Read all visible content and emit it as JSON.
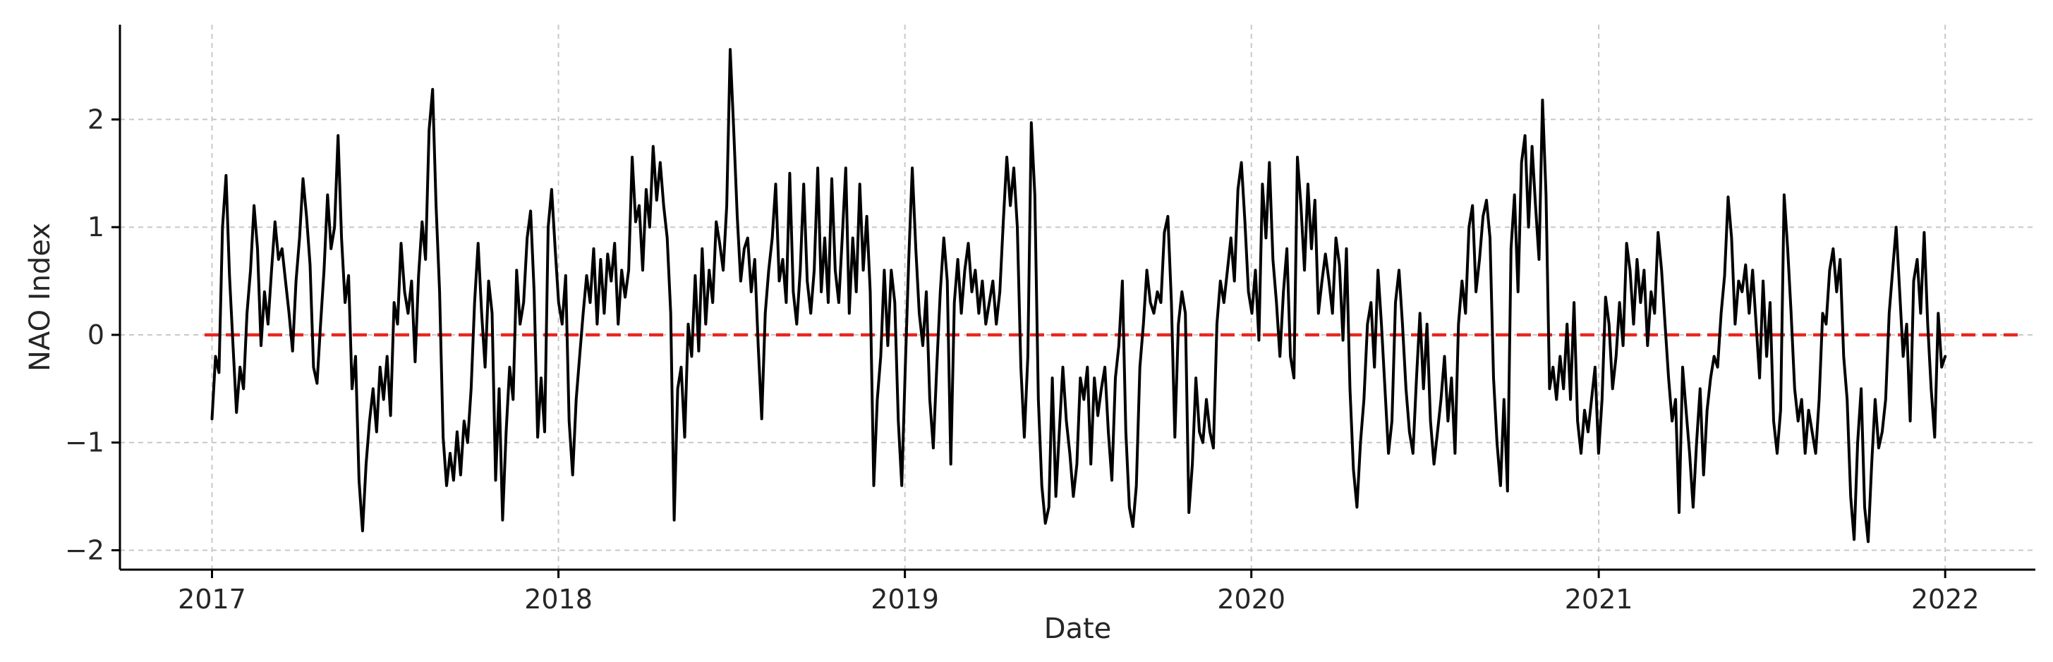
{
  "chart_data": {
    "type": "line",
    "title": "",
    "xlabel": "Date",
    "ylabel": "NAO Index",
    "x_ticks": [
      "2017",
      "2018",
      "2019",
      "2020",
      "2021",
      "2022"
    ],
    "y_ticks": [
      {
        "value": 2,
        "label": "2"
      },
      {
        "value": 1,
        "label": "1"
      },
      {
        "value": 0,
        "label": "0"
      },
      {
        "value": -1,
        "label": "−1"
      },
      {
        "value": -2,
        "label": "−2"
      }
    ],
    "xlim": [
      "2016-09-26",
      "2022-04-06"
    ],
    "ylim": [
      -2.18,
      2.88
    ],
    "grid": true,
    "reference_line": {
      "y": 0,
      "color": "#e8251f",
      "style": "dashed"
    },
    "colors": {
      "series": "#000000",
      "reference": "#e8251f",
      "grid": "#c8c8c8"
    },
    "series": [
      {
        "x_start": "2017-01-01",
        "x_end": "2022-01-01",
        "values": [
          -0.78,
          -0.2,
          -0.35,
          1.0,
          1.48,
          0.55,
          -0.1,
          -0.72,
          -0.3,
          -0.5,
          0.2,
          0.6,
          1.2,
          0.8,
          -0.1,
          0.4,
          0.1,
          0.6,
          1.05,
          0.7,
          0.8,
          0.5,
          0.2,
          -0.15,
          0.5,
          0.9,
          1.45,
          1.1,
          0.65,
          -0.3,
          -0.45,
          0.1,
          0.6,
          1.3,
          0.8,
          1.0,
          1.85,
          0.9,
          0.3,
          0.55,
          -0.5,
          -0.2,
          -1.35,
          -1.82,
          -1.2,
          -0.8,
          -0.5,
          -0.9,
          -0.3,
          -0.6,
          -0.2,
          -0.75,
          0.3,
          0.1,
          0.85,
          0.4,
          0.2,
          0.5,
          -0.25,
          0.55,
          1.05,
          0.7,
          1.9,
          2.28,
          1.2,
          0.4,
          -0.95,
          -1.4,
          -1.1,
          -1.35,
          -0.9,
          -1.3,
          -0.8,
          -1.0,
          -0.5,
          0.3,
          0.85,
          0.2,
          -0.3,
          0.5,
          0.2,
          -1.35,
          -0.5,
          -1.72,
          -0.9,
          -0.3,
          -0.6,
          0.6,
          0.1,
          0.3,
          0.9,
          1.15,
          0.4,
          -0.95,
          -0.4,
          -0.9,
          1.0,
          1.35,
          0.8,
          0.3,
          0.1,
          0.55,
          -0.8,
          -1.3,
          -0.6,
          -0.2,
          0.2,
          0.55,
          0.3,
          0.8,
          0.1,
          0.7,
          0.2,
          0.75,
          0.5,
          0.85,
          0.1,
          0.6,
          0.35,
          0.6,
          1.65,
          1.05,
          1.2,
          0.6,
          1.35,
          1.0,
          1.75,
          1.25,
          1.6,
          1.2,
          0.9,
          0.2,
          -1.72,
          -0.5,
          -0.3,
          -0.95,
          0.1,
          -0.2,
          0.55,
          -0.15,
          0.8,
          0.1,
          0.6,
          0.3,
          1.05,
          0.85,
          0.6,
          1.2,
          2.65,
          1.9,
          1.1,
          0.5,
          0.8,
          0.9,
          0.4,
          0.7,
          -0.1,
          -0.78,
          0.2,
          0.6,
          0.9,
          1.4,
          0.5,
          0.7,
          0.3,
          1.5,
          0.4,
          0.1,
          0.6,
          1.4,
          0.5,
          0.2,
          0.6,
          1.55,
          0.4,
          0.9,
          0.3,
          1.45,
          0.6,
          0.3,
          0.9,
          1.55,
          0.2,
          0.9,
          0.4,
          1.4,
          0.6,
          1.1,
          0.4,
          -1.4,
          -0.6,
          -0.2,
          0.6,
          -0.1,
          0.6,
          0.3,
          -0.8,
          -1.4,
          -0.3,
          0.7,
          1.55,
          0.8,
          0.2,
          -0.1,
          0.4,
          -0.6,
          -1.05,
          -0.3,
          0.4,
          0.9,
          0.5,
          -1.2,
          0.3,
          0.7,
          0.2,
          0.6,
          0.85,
          0.4,
          0.6,
          0.2,
          0.5,
          0.1,
          0.3,
          0.5,
          0.1,
          0.4,
          1.05,
          1.65,
          1.2,
          1.55,
          1.0,
          -0.3,
          -0.95,
          -0.2,
          1.97,
          1.3,
          -0.6,
          -1.4,
          -1.75,
          -1.6,
          -0.4,
          -1.5,
          -0.9,
          -0.3,
          -0.8,
          -1.1,
          -1.5,
          -1.2,
          -0.4,
          -0.6,
          -0.3,
          -1.2,
          -0.4,
          -0.75,
          -0.5,
          -0.3,
          -0.9,
          -1.35,
          -0.4,
          -0.1,
          0.5,
          -0.9,
          -1.6,
          -1.78,
          -1.4,
          -0.3,
          0.1,
          0.6,
          0.3,
          0.2,
          0.4,
          0.3,
          0.95,
          1.1,
          0.3,
          -0.95,
          0.1,
          0.4,
          0.2,
          -1.65,
          -1.2,
          -0.4,
          -0.9,
          -1.0,
          -0.6,
          -0.9,
          -1.05,
          0.1,
          0.5,
          0.3,
          0.6,
          0.9,
          0.5,
          1.35,
          1.6,
          1.05,
          0.4,
          0.2,
          0.6,
          -0.05,
          1.4,
          0.9,
          1.6,
          0.7,
          0.3,
          -0.2,
          0.4,
          0.8,
          -0.2,
          -0.4,
          1.65,
          1.2,
          0.6,
          1.4,
          0.8,
          1.25,
          0.2,
          0.5,
          0.75,
          0.5,
          0.2,
          0.9,
          0.65,
          -0.05,
          0.8,
          -0.5,
          -1.25,
          -1.6,
          -1.0,
          -0.6,
          0.1,
          0.3,
          -0.3,
          0.6,
          0.1,
          -0.5,
          -1.1,
          -0.8,
          0.3,
          0.6,
          0.1,
          -0.5,
          -0.9,
          -1.1,
          -0.4,
          0.2,
          -0.5,
          0.1,
          -0.8,
          -1.2,
          -0.9,
          -0.6,
          -0.2,
          -0.8,
          -0.4,
          -1.1,
          0.1,
          0.5,
          0.2,
          1.0,
          1.2,
          0.4,
          0.7,
          1.1,
          1.25,
          0.9,
          -0.4,
          -1.0,
          -1.4,
          -0.6,
          -1.45,
          0.8,
          1.3,
          0.4,
          1.6,
          1.85,
          1.0,
          1.75,
          1.2,
          0.7,
          2.18,
          1.3,
          -0.5,
          -0.3,
          -0.6,
          -0.2,
          -0.5,
          0.1,
          -0.6,
          0.3,
          -0.8,
          -1.1,
          -0.7,
          -0.9,
          -0.6,
          -0.3,
          -1.1,
          -0.6,
          0.35,
          0.1,
          -0.5,
          -0.2,
          0.3,
          -0.1,
          0.85,
          0.6,
          0.1,
          0.7,
          0.3,
          0.6,
          -0.1,
          0.4,
          0.2,
          0.95,
          0.6,
          0.1,
          -0.4,
          -0.8,
          -0.6,
          -1.65,
          -0.3,
          -0.7,
          -1.1,
          -1.6,
          -1.0,
          -0.5,
          -1.3,
          -0.7,
          -0.4,
          -0.2,
          -0.3,
          0.2,
          0.55,
          1.28,
          0.9,
          0.1,
          0.5,
          0.4,
          0.65,
          0.2,
          0.6,
          0.1,
          -0.4,
          0.5,
          -0.2,
          0.3,
          -0.8,
          -1.1,
          -0.7,
          1.3,
          0.8,
          0.2,
          -0.5,
          -0.8,
          -0.6,
          -1.1,
          -0.7,
          -0.9,
          -1.1,
          -0.6,
          0.2,
          0.1,
          0.6,
          0.8,
          0.4,
          0.7,
          -0.2,
          -0.6,
          -1.5,
          -1.9,
          -1.0,
          -0.5,
          -1.6,
          -1.92,
          -1.2,
          -0.6,
          -1.05,
          -0.9,
          -0.6,
          0.2,
          0.6,
          1.0,
          0.4,
          -0.2,
          0.1,
          -0.8,
          0.5,
          0.7,
          0.2,
          0.95,
          0.1,
          -0.5,
          -0.95,
          0.2,
          -0.3,
          -0.2
        ]
      }
    ]
  }
}
